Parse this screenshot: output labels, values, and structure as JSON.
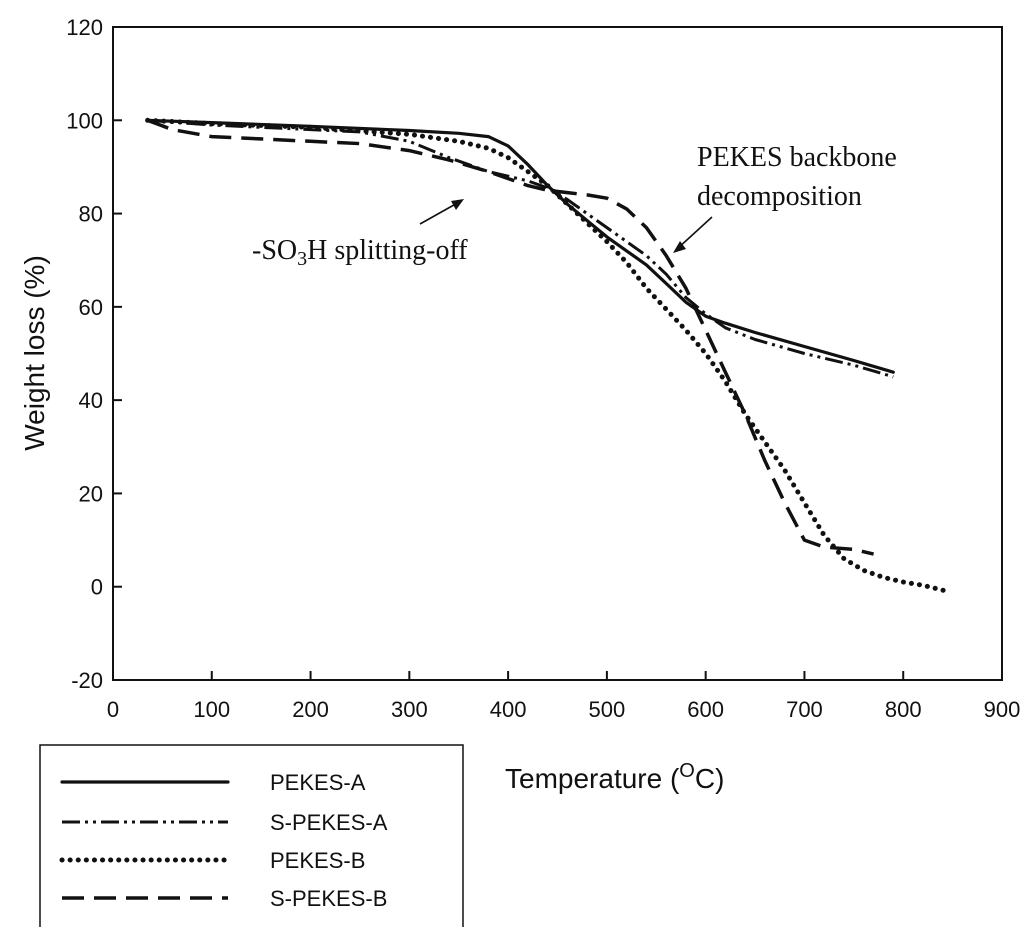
{
  "chart_data": {
    "type": "line",
    "title": "",
    "xlabel": "Temperature (",
    "xlabel_sup": "O",
    "xlabel_suffix": "C)",
    "ylabel": "Weight loss (%)",
    "xlim": [
      0,
      900
    ],
    "ylim": [
      -20,
      120
    ],
    "xticks": [
      "0",
      "100",
      "200",
      "300",
      "400",
      "500",
      "600",
      "700",
      "800",
      "900"
    ],
    "yticks": [
      "-20",
      "0",
      "20",
      "40",
      "60",
      "80",
      "100",
      "120"
    ],
    "grid": false,
    "legend_position": "bottom-left, below plot",
    "series": [
      {
        "name": "PEKES-A",
        "style": "solid",
        "color": "#111111",
        "x": [
          35,
          100,
          200,
          300,
          350,
          380,
          400,
          420,
          440,
          460,
          480,
          500,
          520,
          540,
          560,
          580,
          600,
          620,
          650,
          700,
          750,
          790
        ],
        "y": [
          100,
          99.5,
          98.7,
          97.8,
          97.2,
          96.5,
          94.5,
          90.5,
          86,
          82,
          78.5,
          75,
          72,
          69,
          65,
          61,
          58,
          56.5,
          54.5,
          51.5,
          48.5,
          46
        ]
      },
      {
        "name": "S-PEKES-A",
        "style": "dash-dot-dot",
        "color": "#111111",
        "x": [
          35,
          100,
          200,
          250,
          300,
          340,
          380,
          420,
          440,
          460,
          480,
          500,
          520,
          540,
          560,
          580,
          600,
          620,
          650,
          700,
          750,
          790
        ],
        "y": [
          100,
          99,
          98,
          97.5,
          95.5,
          92,
          89,
          87,
          85.5,
          83,
          80,
          77,
          74,
          71,
          67,
          62,
          58.5,
          55.5,
          53,
          50,
          47.5,
          45
        ]
      },
      {
        "name": "PEKES-B",
        "style": "dotted",
        "color": "#111111",
        "x": [
          35,
          100,
          200,
          300,
          350,
          380,
          400,
          420,
          440,
          460,
          480,
          500,
          520,
          540,
          560,
          580,
          600,
          620,
          640,
          660,
          680,
          700,
          720,
          740,
          760,
          780,
          800,
          820,
          845
        ],
        "y": [
          100,
          99.3,
          98.5,
          97,
          95.5,
          94,
          92,
          89,
          86,
          82,
          78,
          74,
          69.5,
          64,
          59.5,
          55,
          50,
          44,
          37,
          31,
          25,
          18,
          11,
          6,
          3.5,
          2,
          1,
          0.3,
          -1
        ]
      },
      {
        "name": "S-PEKES-B",
        "style": "dashed",
        "color": "#111111",
        "x": [
          35,
          60,
          100,
          200,
          250,
          300,
          340,
          380,
          420,
          440,
          460,
          480,
          500,
          520,
          540,
          560,
          580,
          600,
          620,
          640,
          660,
          680,
          700,
          720,
          750,
          770
        ],
        "y": [
          100,
          98,
          96.5,
          95.5,
          95,
          93.5,
          91.5,
          89,
          86,
          85,
          84.5,
          84,
          83.3,
          81,
          77,
          71,
          64,
          55,
          46,
          37,
          27,
          18,
          10,
          8.5,
          8,
          7
        ]
      }
    ],
    "annotations": [
      {
        "text_parts": [
          "-SO",
          "3",
          "H splitting-off"
        ]
      },
      {
        "text": "PEKES backbone"
      },
      {
        "text": "decomposition"
      }
    ]
  }
}
